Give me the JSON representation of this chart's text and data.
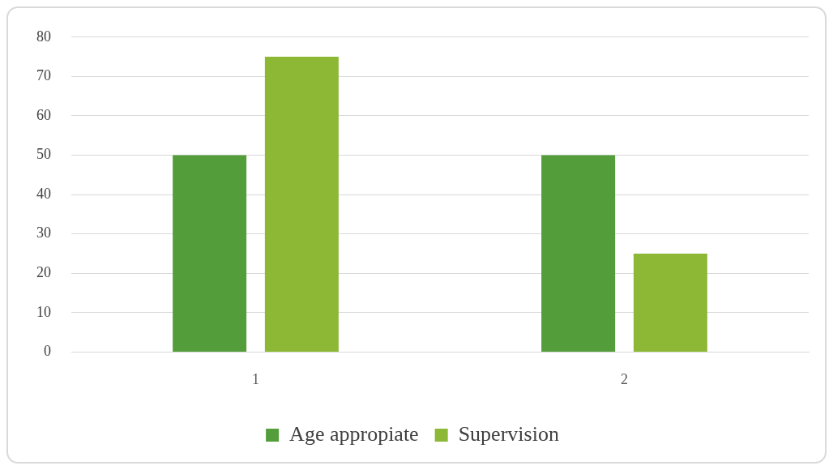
{
  "chart_data": {
    "type": "bar",
    "categories": [
      "1",
      "2"
    ],
    "series": [
      {
        "name": "Age appropiate",
        "color": "#539d3a",
        "values": [
          50,
          50
        ]
      },
      {
        "name": "Supervision",
        "color": "#8db835",
        "values": [
          75,
          25
        ]
      }
    ],
    "ylim": [
      0,
      80
    ],
    "yticks": [
      0,
      10,
      20,
      30,
      40,
      50,
      60,
      70,
      80
    ],
    "grid": "y",
    "legend": "bottom"
  }
}
